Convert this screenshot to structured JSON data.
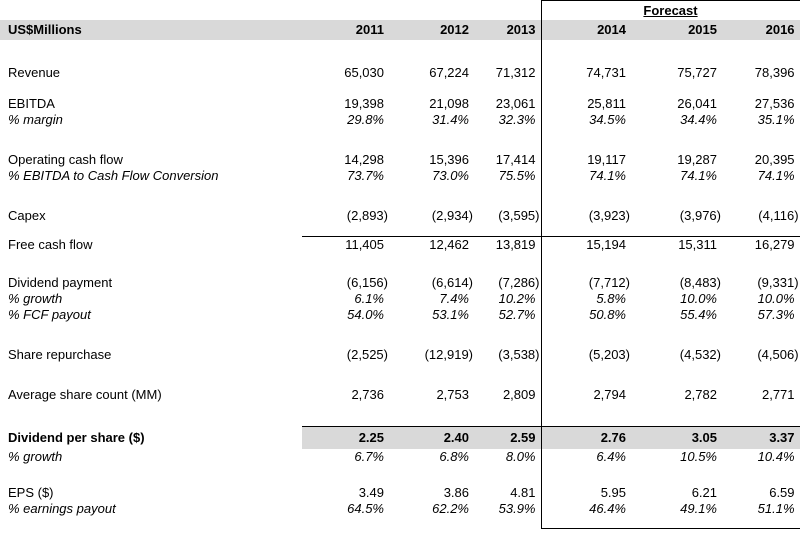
{
  "header": {
    "unit_label": "US$Millions",
    "forecast_label": "Forecast",
    "years": [
      "2011",
      "2012",
      "2013",
      "2014",
      "2015",
      "2016"
    ],
    "historical_year_count": 3,
    "forecast_year_count": 3
  },
  "colors": {
    "header_band_bg": "#d9d9d9",
    "highlight_row_bg": "#d9d9d9",
    "border_color": "#000000",
    "text_color": "#000000"
  },
  "rows": [
    {
      "kind": "spacer",
      "height": 25
    },
    {
      "kind": "data",
      "label": "Revenue",
      "values": [
        "65,030",
        "67,224",
        "71,312",
        "74,731",
        "75,727",
        "78,396"
      ],
      "height": 16
    },
    {
      "kind": "spacer",
      "height": 15
    },
    {
      "kind": "data",
      "label": "EBITDA",
      "values": [
        "19,398",
        "21,098",
        "23,061",
        "25,811",
        "26,041",
        "27,536"
      ],
      "height": 16
    },
    {
      "kind": "data",
      "label": "% margin",
      "values": [
        "29.8%",
        "31.4%",
        "32.3%",
        "34.5%",
        "34.4%",
        "35.1%"
      ],
      "italic": true,
      "height": 16
    },
    {
      "kind": "spacer",
      "height": 24
    },
    {
      "kind": "data",
      "label": "Operating cash flow",
      "values": [
        "14,298",
        "15,396",
        "17,414",
        "19,117",
        "19,287",
        "20,395"
      ],
      "height": 16
    },
    {
      "kind": "data",
      "label": "% EBITDA to Cash Flow Conversion",
      "values": [
        "73.7%",
        "73.0%",
        "75.5%",
        "74.1%",
        "74.1%",
        "74.1%"
      ],
      "italic": true,
      "height": 16
    },
    {
      "kind": "spacer",
      "height": 24
    },
    {
      "kind": "data",
      "label": "Capex",
      "values": [
        "(2,893)",
        "(2,934)",
        "(3,595)",
        "(3,923)",
        "(3,976)",
        "(4,116)"
      ],
      "height": 16
    },
    {
      "kind": "spacer",
      "height": 13
    },
    {
      "kind": "data",
      "label": "Free cash flow",
      "values": [
        "11,405",
        "12,462",
        "13,819",
        "15,194",
        "15,311",
        "16,279"
      ],
      "border_top": true,
      "height": 16
    },
    {
      "kind": "spacer",
      "height": 22
    },
    {
      "kind": "data",
      "label": "Dividend payment",
      "values": [
        "(6,156)",
        "(6,614)",
        "(7,286)",
        "(7,712)",
        "(8,483)",
        "(9,331)"
      ],
      "height": 16
    },
    {
      "kind": "data",
      "label": "% growth",
      "values": [
        "6.1%",
        "7.4%",
        "10.2%",
        "5.8%",
        "10.0%",
        "10.0%"
      ],
      "italic": true,
      "height": 16
    },
    {
      "kind": "data",
      "label": "% FCF payout",
      "values": [
        "54.0%",
        "53.1%",
        "52.7%",
        "50.8%",
        "55.4%",
        "57.3%"
      ],
      "italic": true,
      "height": 16
    },
    {
      "kind": "spacer",
      "height": 24
    },
    {
      "kind": "data",
      "label": "Share repurchase",
      "values": [
        "(2,525)",
        "(12,919)",
        "(3,538)",
        "(5,203)",
        "(4,532)",
        "(4,506)"
      ],
      "height": 16
    },
    {
      "kind": "spacer",
      "height": 24
    },
    {
      "kind": "data",
      "label": "Average share count (MM)",
      "values": [
        "2,736",
        "2,753",
        "2,809",
        "2,794",
        "2,782",
        "2,771"
      ],
      "height": 16
    },
    {
      "kind": "spacer",
      "height": 24
    },
    {
      "kind": "data",
      "label": "Dividend per share ($)",
      "values": [
        "2.25",
        "2.40",
        "2.59",
        "2.76",
        "3.05",
        "3.37"
      ],
      "bold": true,
      "highlight": true,
      "border_top": true,
      "height": 22
    },
    {
      "kind": "data",
      "label": "% growth",
      "values": [
        "6.7%",
        "6.8%",
        "8.0%",
        "6.4%",
        "10.5%",
        "10.4%"
      ],
      "italic": true,
      "height": 16
    },
    {
      "kind": "spacer",
      "height": 20
    },
    {
      "kind": "data",
      "label": "EPS ($)",
      "values": [
        "3.49",
        "3.86",
        "4.81",
        "5.95",
        "6.21",
        "6.59"
      ],
      "height": 16
    },
    {
      "kind": "data",
      "label": "% earnings payout",
      "values": [
        "64.5%",
        "62.2%",
        "53.9%",
        "46.4%",
        "49.1%",
        "51.1%"
      ],
      "italic": true,
      "height": 16
    },
    {
      "kind": "spacer",
      "height": 12,
      "box_bottom": true
    }
  ]
}
